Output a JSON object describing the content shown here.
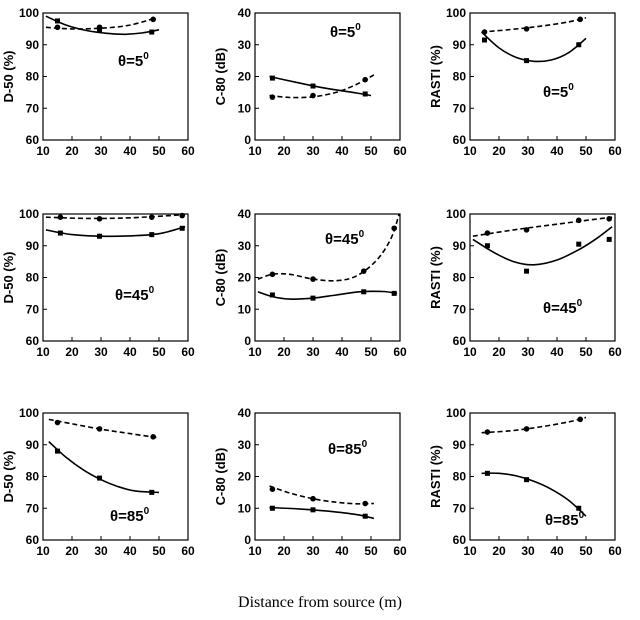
{
  "figure": {
    "xlabel": "Distance from source (m)"
  },
  "chart_data": [
    {
      "type": "line",
      "ylabel": "D-50 (%)",
      "annotation": "θ=5",
      "annotation_sup": "0",
      "xlim": [
        10,
        60
      ],
      "ylim": [
        60,
        100
      ],
      "xticks": [
        10,
        20,
        30,
        40,
        50,
        60
      ],
      "yticks": [
        60,
        70,
        80,
        90,
        100
      ],
      "series": [
        {
          "name": "solid-square",
          "style": "solid",
          "marker": "square",
          "x": [
            15,
            29.5,
            47.5
          ],
          "y": [
            97.5,
            94.5,
            94
          ],
          "fit": [
            [
              11,
              99
            ],
            [
              18,
              96.2
            ],
            [
              25,
              94.5
            ],
            [
              32,
              93.6
            ],
            [
              38,
              93.3
            ],
            [
              44,
              93.7
            ],
            [
              50,
              94.7
            ]
          ]
        },
        {
          "name": "dashed-circle",
          "style": "dashed",
          "marker": "circle",
          "x": [
            15,
            29.5,
            48
          ],
          "y": [
            95.5,
            95.5,
            98
          ],
          "fit": [
            [
              11,
              95.5
            ],
            [
              20,
              95
            ],
            [
              30,
              95.2
            ],
            [
              40,
              96.2
            ],
            [
              49,
              98.5
            ]
          ]
        }
      ]
    },
    {
      "type": "line",
      "ylabel": "C-80 (dB)",
      "annotation": "θ=5",
      "annotation_sup": "0",
      "xlim": [
        10,
        60
      ],
      "ylim": [
        0,
        40
      ],
      "xticks": [
        10,
        20,
        30,
        40,
        50,
        60
      ],
      "yticks": [
        0,
        10,
        20,
        30,
        40
      ],
      "series": [
        {
          "name": "solid-square",
          "style": "solid",
          "marker": "square",
          "x": [
            16,
            30,
            48
          ],
          "y": [
            19.5,
            17,
            14.5
          ],
          "fit": [
            [
              15,
              20
            ],
            [
              25,
              18
            ],
            [
              35,
              16.2
            ],
            [
              45,
              14.8
            ],
            [
              50,
              14
            ]
          ]
        },
        {
          "name": "dashed-circle",
          "style": "dashed",
          "marker": "circle",
          "x": [
            16,
            30,
            48
          ],
          "y": [
            13.5,
            14,
            19
          ],
          "fit": [
            [
              15,
              14
            ],
            [
              22,
              13.4
            ],
            [
              30,
              13.6
            ],
            [
              38,
              15
            ],
            [
              45,
              17.5
            ],
            [
              51,
              20.5
            ]
          ]
        }
      ]
    },
    {
      "type": "line",
      "ylabel": "RASTI (%)",
      "annotation": "θ=5",
      "annotation_sup": "0",
      "xlim": [
        10,
        60
      ],
      "ylim": [
        60,
        100
      ],
      "xticks": [
        10,
        20,
        30,
        40,
        50,
        60
      ],
      "yticks": [
        60,
        70,
        80,
        90,
        100
      ],
      "series": [
        {
          "name": "solid-square",
          "style": "solid",
          "marker": "square",
          "x": [
            15,
            29.5,
            47.5
          ],
          "y": [
            91.5,
            85,
            90
          ],
          "fit": [
            [
              14,
              94
            ],
            [
              20,
              89
            ],
            [
              26,
              86
            ],
            [
              32,
              84.8
            ],
            [
              38,
              85.2
            ],
            [
              44,
              87.5
            ],
            [
              50,
              92
            ]
          ]
        },
        {
          "name": "dashed-circle",
          "style": "dashed",
          "marker": "circle",
          "x": [
            15,
            29.5,
            48
          ],
          "y": [
            94,
            95,
            98
          ],
          "fit": [
            [
              14,
              94
            ],
            [
              24,
              94.8
            ],
            [
              34,
              95.8
            ],
            [
              44,
              97.2
            ],
            [
              50,
              98.5
            ]
          ]
        }
      ]
    },
    {
      "type": "line",
      "ylabel": "D-50 (%)",
      "annotation": "θ=45",
      "annotation_sup": "0",
      "xlim": [
        10,
        60
      ],
      "ylim": [
        60,
        100
      ],
      "xticks": [
        10,
        20,
        30,
        40,
        50,
        60
      ],
      "yticks": [
        60,
        70,
        80,
        90,
        100
      ],
      "series": [
        {
          "name": "solid-square",
          "style": "solid",
          "marker": "square",
          "x": [
            16,
            29.5,
            47.5,
            58
          ],
          "y": [
            94,
            93,
            93.5,
            95.5
          ],
          "fit": [
            [
              11,
              95
            ],
            [
              20,
              93.5
            ],
            [
              30,
              93
            ],
            [
              40,
              93.1
            ],
            [
              50,
              93.8
            ],
            [
              59,
              96
            ]
          ]
        },
        {
          "name": "dashed-circle",
          "style": "dashed",
          "marker": "circle",
          "x": [
            16,
            29.5,
            47.5,
            58
          ],
          "y": [
            99,
            98.5,
            99,
            99.5
          ],
          "fit": [
            [
              11,
              99
            ],
            [
              25,
              98.6
            ],
            [
              40,
              98.8
            ],
            [
              59,
              99.8
            ]
          ]
        }
      ]
    },
    {
      "type": "line",
      "ylabel": "C-80 (dB)",
      "annotation": "θ=45",
      "annotation_sup": "0",
      "xlim": [
        10,
        60
      ],
      "ylim": [
        0,
        40
      ],
      "xticks": [
        10,
        20,
        30,
        40,
        50,
        60
      ],
      "yticks": [
        0,
        10,
        20,
        30,
        40
      ],
      "series": [
        {
          "name": "solid-square",
          "style": "solid",
          "marker": "square",
          "x": [
            16,
            30,
            47.5,
            58
          ],
          "y": [
            14.5,
            13.5,
            15.5,
            15
          ],
          "fit": [
            [
              11,
              15.5
            ],
            [
              16,
              14
            ],
            [
              22,
              13.2
            ],
            [
              30,
              13.5
            ],
            [
              38,
              14.5
            ],
            [
              46,
              15.5
            ],
            [
              54,
              15.6
            ],
            [
              59,
              15
            ]
          ]
        },
        {
          "name": "dashed-circle",
          "style": "dashed",
          "marker": "circle",
          "x": [
            16,
            30,
            47.5,
            58
          ],
          "y": [
            21,
            19.5,
            22,
            35.5
          ],
          "fit": [
            [
              11,
              19.5
            ],
            [
              16,
              21
            ],
            [
              22,
              21
            ],
            [
              30,
              19.5
            ],
            [
              38,
              19
            ],
            [
              45,
              20.5
            ],
            [
              52,
              25.5
            ],
            [
              57,
              32.5
            ],
            [
              60,
              41
            ]
          ]
        }
      ]
    },
    {
      "type": "line",
      "ylabel": "RASTI (%)",
      "annotation": "θ=45",
      "annotation_sup": "0",
      "xlim": [
        10,
        60
      ],
      "ylim": [
        60,
        100
      ],
      "xticks": [
        10,
        20,
        30,
        40,
        50,
        60
      ],
      "yticks": [
        60,
        70,
        80,
        90,
        100
      ],
      "series": [
        {
          "name": "solid-square",
          "style": "solid",
          "marker": "square",
          "x": [
            16,
            29.5,
            47.5,
            58
          ],
          "y": [
            90,
            82,
            90.5,
            92
          ],
          "fit": [
            [
              11,
              92
            ],
            [
              18,
              88
            ],
            [
              25,
              85
            ],
            [
              32,
              84
            ],
            [
              40,
              85.5
            ],
            [
              48,
              89
            ],
            [
              54,
              92.5
            ],
            [
              59,
              96
            ]
          ]
        },
        {
          "name": "dashed-circle",
          "style": "dashed",
          "marker": "circle",
          "x": [
            16,
            29.5,
            47.5,
            58
          ],
          "y": [
            94,
            95,
            98,
            98.5
          ],
          "fit": [
            [
              11,
              93
            ],
            [
              25,
              95
            ],
            [
              40,
              96.8
            ],
            [
              59,
              99
            ]
          ]
        }
      ]
    },
    {
      "type": "line",
      "ylabel": "D-50 (%)",
      "annotation": "θ=85",
      "annotation_sup": "0",
      "xlim": [
        10,
        60
      ],
      "ylim": [
        60,
        100
      ],
      "xticks": [
        10,
        20,
        30,
        40,
        50,
        60
      ],
      "yticks": [
        60,
        70,
        80,
        90,
        100
      ],
      "series": [
        {
          "name": "solid-square",
          "style": "solid",
          "marker": "square",
          "x": [
            15,
            29.5,
            47.5
          ],
          "y": [
            88,
            79.5,
            75
          ],
          "fit": [
            [
              12,
              91
            ],
            [
              18,
              86
            ],
            [
              24,
              82
            ],
            [
              30,
              79
            ],
            [
              36,
              76.8
            ],
            [
              42,
              75.4
            ],
            [
              50,
              75
            ]
          ]
        },
        {
          "name": "dashed-circle",
          "style": "dashed",
          "marker": "circle",
          "x": [
            15,
            29.5,
            48
          ],
          "y": [
            97,
            95,
            92.5
          ],
          "fit": [
            [
              12,
              98
            ],
            [
              20,
              96.6
            ],
            [
              30,
              94.9
            ],
            [
              40,
              93.5
            ],
            [
              50,
              92.2
            ]
          ]
        }
      ]
    },
    {
      "type": "line",
      "ylabel": "C-80 (dB)",
      "annotation": "θ=85",
      "annotation_sup": "0",
      "xlim": [
        10,
        60
      ],
      "ylim": [
        0,
        40
      ],
      "xticks": [
        10,
        20,
        30,
        40,
        50,
        60
      ],
      "yticks": [
        0,
        10,
        20,
        30,
        40
      ],
      "series": [
        {
          "name": "solid-square",
          "style": "solid",
          "marker": "square",
          "x": [
            16,
            30,
            48
          ],
          "y": [
            10,
            9.5,
            7.5
          ],
          "fit": [
            [
              15,
              10.2
            ],
            [
              25,
              9.8
            ],
            [
              35,
              9.1
            ],
            [
              45,
              8
            ],
            [
              51,
              6.8
            ]
          ]
        },
        {
          "name": "dashed-circle",
          "style": "dashed",
          "marker": "circle",
          "x": [
            16,
            30,
            48
          ],
          "y": [
            16,
            13,
            11.5
          ],
          "fit": [
            [
              15,
              17
            ],
            [
              22,
              14.8
            ],
            [
              30,
              13
            ],
            [
              38,
              11.9
            ],
            [
              45,
              11.4
            ],
            [
              51,
              11.5
            ]
          ]
        }
      ]
    },
    {
      "type": "line",
      "ylabel": "RASTI (%)",
      "annotation": "θ=85",
      "annotation_sup": "0",
      "xlim": [
        10,
        60
      ],
      "ylim": [
        60,
        100
      ],
      "xticks": [
        10,
        20,
        30,
        40,
        50,
        60
      ],
      "yticks": [
        60,
        70,
        80,
        90,
        100
      ],
      "series": [
        {
          "name": "solid-square",
          "style": "solid",
          "marker": "square",
          "x": [
            16,
            29.5,
            47.5
          ],
          "y": [
            81,
            79,
            70
          ],
          "fit": [
            [
              14,
              81
            ],
            [
              20,
              81
            ],
            [
              26,
              80.2
            ],
            [
              32,
              78.5
            ],
            [
              38,
              76
            ],
            [
              44,
              72.5
            ],
            [
              50,
              67.5
            ]
          ]
        },
        {
          "name": "dashed-circle",
          "style": "dashed",
          "marker": "circle",
          "x": [
            16,
            29.5,
            48
          ],
          "y": [
            94,
            95,
            98
          ],
          "fit": [
            [
              14,
              93.8
            ],
            [
              24,
              94.4
            ],
            [
              34,
              95.6
            ],
            [
              44,
              97.2
            ],
            [
              50,
              98.6
            ]
          ]
        }
      ]
    }
  ]
}
